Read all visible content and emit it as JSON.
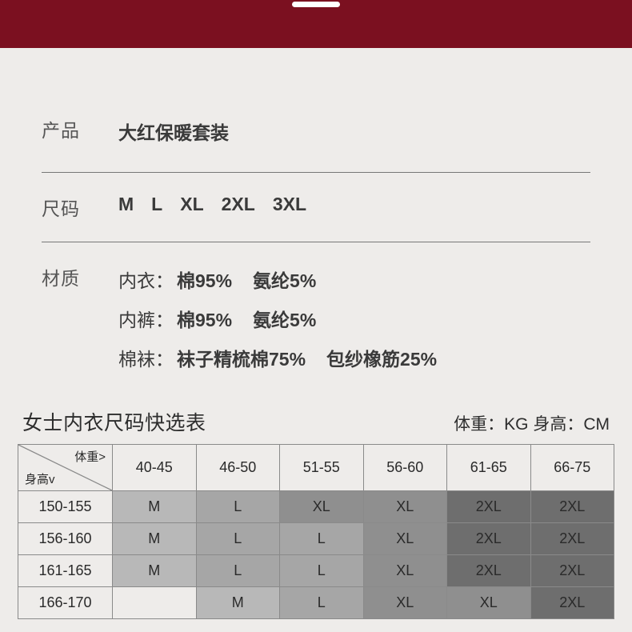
{
  "banner": {
    "bg": "#7b1020",
    "pill_color": "#ffffff"
  },
  "info": {
    "product_label": "产品",
    "product_value": "大红保暖套装",
    "size_label": "尺码",
    "sizes": [
      "M",
      "L",
      "XL",
      "2XL",
      "3XL"
    ],
    "material_label": "材质",
    "materials": [
      {
        "key": "内衣：",
        "vals": [
          "棉95%",
          "氨纶5%"
        ]
      },
      {
        "key": "内裤：",
        "vals": [
          "棉95%",
          "氨纶5%"
        ]
      },
      {
        "key": "棉袜：",
        "vals": [
          "袜子精梳棉75%",
          "包纱橡筋25%"
        ]
      }
    ]
  },
  "size_table": {
    "title": "女士内衣尺码快选表",
    "units": "体重：KG 身高：CM",
    "corner_weight": "体重>",
    "corner_height": "身高v",
    "weight_headers": [
      "40-45",
      "46-50",
      "51-55",
      "56-60",
      "61-65",
      "66-75"
    ],
    "height_rows": [
      "150-155",
      "156-160",
      "161-165",
      "166-170"
    ],
    "cells": [
      [
        "M",
        "L",
        "XL",
        "XL",
        "2XL",
        "2XL"
      ],
      [
        "M",
        "L",
        "L",
        "XL",
        "2XL",
        "2XL"
      ],
      [
        "M",
        "L",
        "L",
        "XL",
        "2XL",
        "2XL"
      ],
      [
        "",
        "M",
        "L",
        "XL",
        "XL",
        "2XL"
      ]
    ],
    "cell_bg": {
      "M": "#b8b8b8",
      "L": "#a6a6a6",
      "XL": "#8f8f8f",
      "2XL": "#6e6e6e",
      "": "#eeecea"
    },
    "border_color": "#8a8a8a"
  },
  "page": {
    "bg": "#eeecea",
    "label_color": "#555555",
    "value_color": "#3a3a3a",
    "text_color": "#2d2d2d",
    "label_fontsize": 23,
    "value_fontsize": 23,
    "title_fontsize": 25,
    "units_fontsize": 21,
    "cell_fontsize": 18
  }
}
